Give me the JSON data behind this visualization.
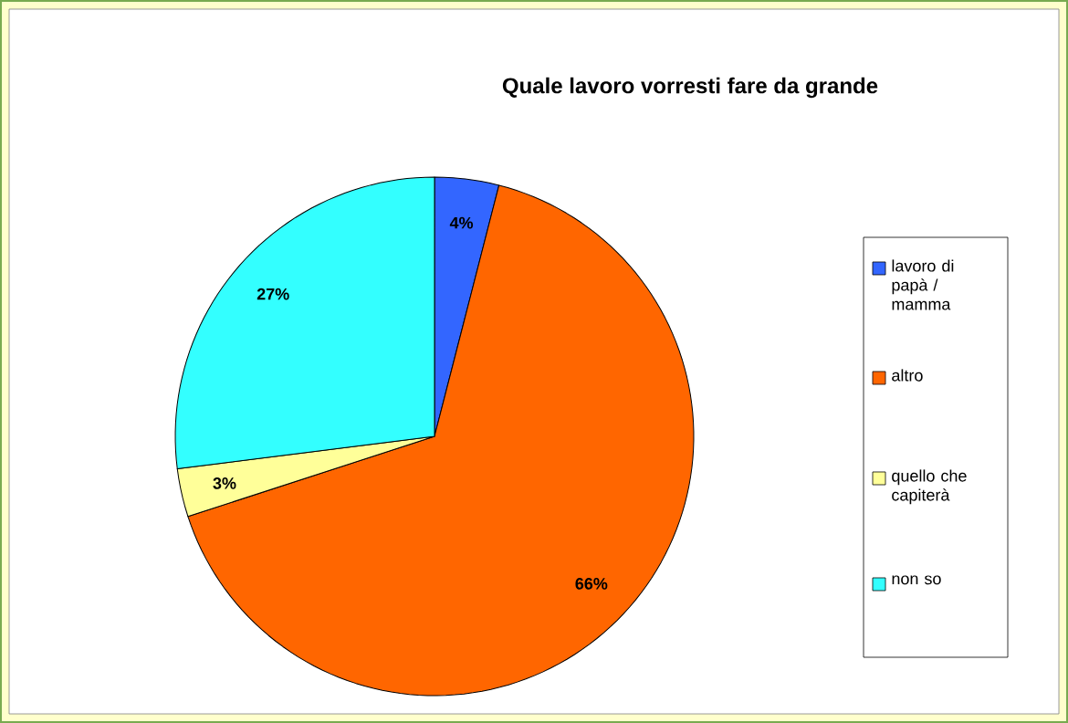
{
  "chart_data": {
    "type": "pie",
    "title": "Quale lavoro vorresti fare da grande",
    "categories": [
      "lavoro di papà / mamma",
      "altro",
      "quello che capiterà",
      "non so"
    ],
    "values": [
      4,
      66,
      3,
      27
    ],
    "colors": [
      "#3366ff",
      "#ff6600",
      "#ffff99",
      "#33ffff"
    ],
    "value_labels": [
      "4%",
      "66%",
      "3%",
      "27%"
    ],
    "legend": "right"
  }
}
